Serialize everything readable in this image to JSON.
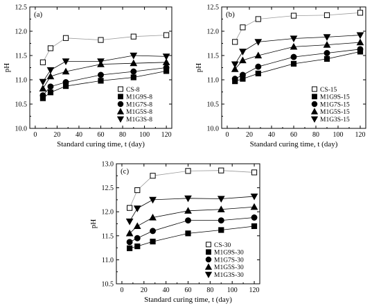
{
  "chart_data": [
    {
      "type": "scatter",
      "panel_label": "(a)",
      "xlabel": "Standard curing time, t (day)",
      "ylabel": "pH",
      "xlim": [
        -5,
        125
      ],
      "ylim": [
        10.0,
        12.5
      ],
      "xticks": [
        0,
        20,
        40,
        60,
        80,
        100,
        120
      ],
      "yticks": [
        10.0,
        10.5,
        11.0,
        11.5,
        12.0,
        12.5
      ],
      "x": [
        7,
        14,
        28,
        60,
        90,
        120
      ],
      "grid": false,
      "legend_position": "bottom-right",
      "series": [
        {
          "name": "CS-8",
          "marker": "square-open",
          "values": [
            11.36,
            11.65,
            11.86,
            11.82,
            11.89,
            11.92
          ]
        },
        {
          "name": "M1G9S-8",
          "marker": "square",
          "values": [
            10.62,
            10.74,
            10.87,
            10.98,
            11.05,
            11.18
          ]
        },
        {
          "name": "M1G7S-8",
          "marker": "circle",
          "values": [
            10.68,
            10.86,
            10.95,
            11.1,
            11.17,
            11.25
          ]
        },
        {
          "name": "M1G5S-8",
          "marker": "triangle-up",
          "values": [
            10.82,
            11.07,
            11.17,
            11.32,
            11.34,
            11.36
          ]
        },
        {
          "name": "M1G3S-8",
          "marker": "triangle-down",
          "values": [
            10.96,
            11.2,
            11.38,
            11.38,
            11.5,
            11.48
          ]
        }
      ]
    },
    {
      "type": "scatter",
      "panel_label": "(b)",
      "xlabel": "Standard curing time, t (day)",
      "ylabel": "pH",
      "xlim": [
        -5,
        125
      ],
      "ylim": [
        10.0,
        12.5
      ],
      "xticks": [
        0,
        20,
        40,
        60,
        80,
        100,
        120
      ],
      "yticks": [
        10.0,
        10.5,
        11.0,
        11.5,
        12.0,
        12.5
      ],
      "x": [
        7,
        14,
        28,
        60,
        90,
        120
      ],
      "grid": false,
      "legend_position": "bottom-right",
      "series": [
        {
          "name": "CS-15",
          "marker": "square-open",
          "values": [
            11.78,
            12.08,
            12.25,
            12.32,
            12.33,
            12.38
          ]
        },
        {
          "name": "M1G9S-15",
          "marker": "square",
          "values": [
            10.97,
            11.02,
            11.13,
            11.33,
            11.43,
            11.58
          ]
        },
        {
          "name": "M1G7S-15",
          "marker": "circle",
          "values": [
            11.02,
            11.1,
            11.27,
            11.47,
            11.55,
            11.63
          ]
        },
        {
          "name": "M1G5S-15",
          "marker": "triangle-up",
          "values": [
            11.22,
            11.4,
            11.5,
            11.68,
            11.72,
            11.77
          ]
        },
        {
          "name": "M1G3S-15",
          "marker": "triangle-down",
          "values": [
            11.32,
            11.58,
            11.78,
            11.85,
            11.88,
            11.92
          ]
        }
      ]
    },
    {
      "type": "scatter",
      "panel_label": "(c)",
      "xlabel": "Standard curing time, t (day)",
      "ylabel": "pH",
      "xlim": [
        -5,
        125
      ],
      "ylim": [
        10.5,
        13.0
      ],
      "xticks": [
        0,
        20,
        40,
        60,
        80,
        100,
        120
      ],
      "yticks": [
        10.5,
        11.0,
        11.5,
        12.0,
        12.5,
        13.0
      ],
      "x": [
        7,
        14,
        28,
        60,
        90,
        120
      ],
      "grid": false,
      "legend_position": "bottom-right",
      "series": [
        {
          "name": "CS-30",
          "marker": "square-open",
          "values": [
            12.08,
            12.45,
            12.75,
            12.85,
            12.86,
            12.82
          ]
        },
        {
          "name": "M1G9S-30",
          "marker": "square",
          "values": [
            11.24,
            11.28,
            11.38,
            11.55,
            11.62,
            11.7
          ]
        },
        {
          "name": "M1G7S-30",
          "marker": "circle",
          "values": [
            11.37,
            11.45,
            11.6,
            11.82,
            11.82,
            11.88
          ]
        },
        {
          "name": "M1G5S-30",
          "marker": "triangle-up",
          "values": [
            11.55,
            11.7,
            11.88,
            12.02,
            12.05,
            12.1
          ]
        },
        {
          "name": "M1G3S-30",
          "marker": "triangle-down",
          "values": [
            11.8,
            12.07,
            12.25,
            12.28,
            12.27,
            12.32
          ]
        }
      ]
    }
  ]
}
